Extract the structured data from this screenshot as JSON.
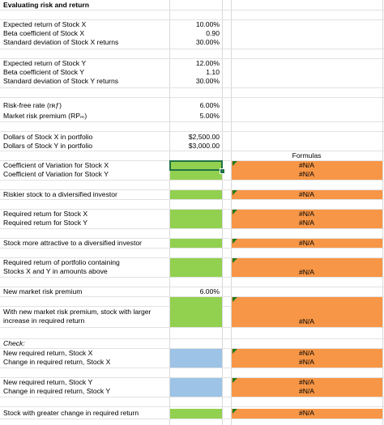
{
  "title": "Evaluating risk and return",
  "inputs": {
    "expected_return_x": {
      "label": "Expected return of Stock X",
      "value": "10.00%"
    },
    "beta_x": {
      "label": "Beta coefficient of Stock X",
      "value": "0.90"
    },
    "std_x": {
      "label": "Standard deviation of Stock X returns",
      "value": "30.00%"
    },
    "expected_return_y": {
      "label": "Expected return of Stock Y",
      "value": "12.00%"
    },
    "beta_y": {
      "label": "Beta coefficient of Stock Y",
      "value": "1.10"
    },
    "std_y": {
      "label": "Standard deviation of Stock Y returns",
      "value": "30.00%"
    },
    "risk_free": {
      "label": "Risk-free rate (rʀƒ)",
      "value": "6.00%"
    },
    "market_premium": {
      "label": "Market risk premium (RPₘ)",
      "value": "5.00%"
    },
    "dollars_x": {
      "label": "Dollars of Stock X in portfolio",
      "value": "$2,500.00"
    },
    "dollars_y": {
      "label": "Dollars of Stock Y in portfolio",
      "value": "$3,000.00"
    }
  },
  "formulas_header": "Formulas",
  "questions": {
    "cv_x": {
      "label": "Coefficient of Variation for Stock X",
      "formula": "#N/A"
    },
    "cv_y": {
      "label": "Coefficient of Variation for Stock Y",
      "formula": "#N/A"
    },
    "riskier": {
      "label": "Riskier stock to a diviersified investor",
      "formula": "#N/A"
    },
    "req_x": {
      "label": "Required return for Stock X",
      "formula": "#N/A"
    },
    "req_y": {
      "label": "Required return for Stock Y",
      "formula": "#N/A"
    },
    "more_attractive": {
      "label": "Stock more attractive to a diversified investor",
      "formula": "#N/A"
    },
    "portfolio_line1": "Required return of portfolio containing",
    "portfolio_line2": "Stocks X and Y in amounts above",
    "portfolio_formula": "#N/A",
    "new_premium": {
      "label": "New market risk premium",
      "value": "6.00%"
    },
    "larger_line1": "With new market risk premium, stock with larger",
    "larger_line2": "increase in required return",
    "larger_formula": "#N/A"
  },
  "check": {
    "label": "Check:",
    "new_req_x": {
      "label": "New required return, Stock X",
      "formula": "#N/A"
    },
    "change_x": {
      "label": "Change in required return, Stock X",
      "formula": "#N/A"
    },
    "new_req_y": {
      "label": "New required return, Stock Y",
      "formula": "#N/A"
    },
    "change_y": {
      "label": "Change in required return, Stock Y",
      "formula": "#N/A"
    },
    "greater_change": {
      "label": "Stock with greater change in required return",
      "formula": "#N/A"
    }
  },
  "colors": {
    "input_fill": "#92d050",
    "formula_fill": "#f79646",
    "check_fill": "#9dc3e6",
    "selection_border": "#217346"
  }
}
